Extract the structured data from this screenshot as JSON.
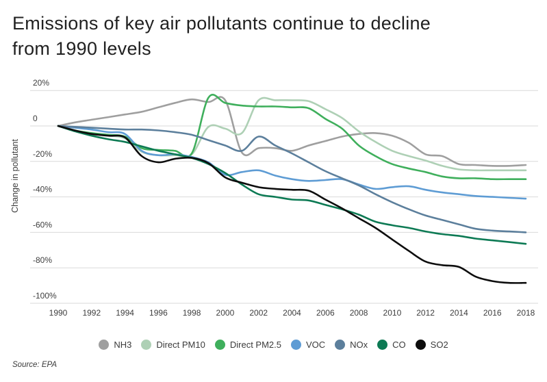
{
  "header": {
    "title_lines": [
      "Emissions of key air pollutants continue to decline",
      "from 1990 levels"
    ]
  },
  "footer": {
    "source": "Source: EPA"
  },
  "chart_data": {
    "type": "line",
    "title": "Emissions of key air pollutants continue to decline from 1990 levels",
    "xlabel": "",
    "ylabel": "Change in pollutant",
    "ylim": [
      -100,
      20
    ],
    "grid": "horizontal",
    "legend_position": "bottom",
    "x": [
      1990,
      1991,
      1992,
      1993,
      1994,
      1995,
      1996,
      1997,
      1998,
      1999,
      2000,
      2001,
      2002,
      2003,
      2004,
      2005,
      2006,
      2007,
      2008,
      2009,
      2010,
      2011,
      2012,
      2013,
      2014,
      2015,
      2016,
      2017,
      2018
    ],
    "x_ticks": [
      1990,
      1992,
      1994,
      1996,
      1998,
      2000,
      2002,
      2004,
      2006,
      2008,
      2010,
      2012,
      2014,
      2016,
      2018
    ],
    "y_ticks": [
      20,
      0,
      -20,
      -40,
      -60,
      -80,
      -100
    ],
    "y_tick_labels": [
      "20%",
      "0",
      "-20%",
      "-40%",
      "-60%",
      "-80%",
      "-100%"
    ],
    "unit": "percent change since 1990",
    "series": [
      {
        "name": "NH3",
        "color": "#9f9f9f",
        "values": [
          0,
          2,
          3.5,
          5,
          6.5,
          8,
          10.5,
          13,
          15,
          13.5,
          14.5,
          -15,
          -12.5,
          -12.5,
          -14,
          -11,
          -8.5,
          -6,
          -4.5,
          -4,
          -5.5,
          -9.5,
          -16,
          -17,
          -21.5,
          -22,
          -22.5,
          -22.5,
          -22
        ]
      },
      {
        "name": "Direct PM10",
        "color": "#aed0b5",
        "values": [
          0,
          -2.5,
          -4.5,
          -5.5,
          -7,
          -14.5,
          -16.5,
          -16.5,
          -16,
          -0.5,
          -1.5,
          -4,
          14.5,
          14.5,
          14.5,
          14,
          9.5,
          4.5,
          -3,
          -9,
          -14,
          -17,
          -19.5,
          -22.5,
          -24.5,
          -25,
          -25,
          -25,
          -25
        ]
      },
      {
        "name": "Direct PM2.5",
        "color": "#3faf5c",
        "values": [
          0,
          -2.5,
          -4,
          -5,
          -6,
          -12.5,
          -13.5,
          -14,
          -15.5,
          16,
          13,
          11.5,
          11,
          11,
          10.5,
          10,
          4,
          -1.5,
          -11,
          -17,
          -21.5,
          -24,
          -26,
          -28.5,
          -29.5,
          -29.5,
          -30,
          -30,
          -30
        ]
      },
      {
        "name": "VOC",
        "color": "#5e9cd4",
        "values": [
          0,
          -1,
          -2,
          -3.5,
          -4.5,
          -14,
          -16.5,
          -16,
          -17.5,
          -20.5,
          -27.5,
          -26,
          -25,
          -28,
          -30,
          -31,
          -30.5,
          -30,
          -33,
          -35.5,
          -34.5,
          -34,
          -36,
          -37.5,
          -38.5,
          -39.5,
          -40,
          -40.5,
          -41
        ]
      },
      {
        "name": "NOx",
        "color": "#5c7f9c",
        "values": [
          0,
          -0.5,
          -1,
          -1.5,
          -2,
          -2,
          -2.5,
          -3.5,
          -5,
          -8,
          -11,
          -14,
          -6,
          -11,
          -15.5,
          -20.5,
          -25.5,
          -29.5,
          -33.5,
          -38.5,
          -43,
          -47,
          -50.5,
          -53,
          -55.5,
          -58,
          -59,
          -59.5,
          -60
        ]
      },
      {
        "name": "CO",
        "color": "#0d7a54",
        "values": [
          0,
          -3,
          -5.5,
          -7.5,
          -9,
          -11.5,
          -14,
          -16,
          -18,
          -21.5,
          -26.5,
          -33,
          -38.5,
          -40,
          -41.5,
          -42,
          -44.5,
          -47,
          -50,
          -54,
          -56,
          -57.5,
          -59.5,
          -61,
          -62,
          -63.5,
          -64.5,
          -65.5,
          -66.5
        ]
      },
      {
        "name": "SO2",
        "color": "#0d0d0d",
        "values": [
          0,
          -2.5,
          -4.5,
          -5.5,
          -6.5,
          -17,
          -20.5,
          -18.5,
          -18,
          -21,
          -29,
          -32,
          -34.5,
          -35.5,
          -36,
          -36.5,
          -41.5,
          -46.5,
          -52,
          -57.5,
          -64,
          -70.5,
          -76.5,
          -78.5,
          -79.5,
          -85,
          -87.5,
          -88.5,
          -88.5
        ]
      }
    ]
  }
}
